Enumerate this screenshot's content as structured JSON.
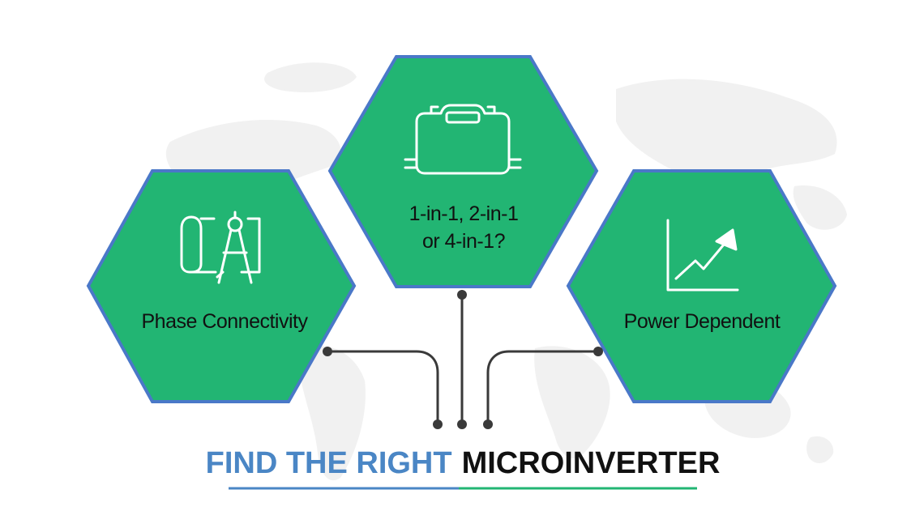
{
  "hexagons": {
    "left": {
      "label": "Phase Connectivity",
      "icon": "drafting-compass-blueprint-icon"
    },
    "center": {
      "label_line1": "1-in-1, 2-in-1",
      "label_line2": "or 4-in-1?",
      "icon": "microinverter-device-icon"
    },
    "right": {
      "label": "Power Dependent",
      "icon": "rising-chart-arrow-icon"
    }
  },
  "title": {
    "part1": "FIND THE RIGHT",
    "part2": "MICROINVERTER"
  },
  "colors": {
    "hex_fill": "#22b573",
    "hex_border": "#4a78c8",
    "title_blue": "#4a86c5",
    "title_black": "#111111",
    "connector": "#3a3a3a",
    "underline_left": "#4a86c5",
    "underline_right": "#22b573",
    "world_map": "#f0f0f0"
  }
}
